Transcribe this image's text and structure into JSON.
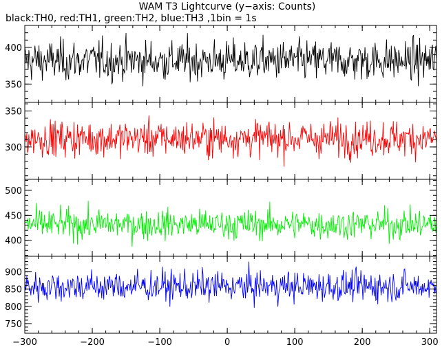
{
  "chart_data": {
    "type": "line",
    "title": "WAM T3 Lightcurve (y−axis: Counts)",
    "subtitle": "black:TH0, red:TH1, green:TH2, blue:TH3 ,1bin = 1s",
    "xlabel": "",
    "xlim": [
      -300,
      310
    ],
    "x_ticks": [
      -300,
      -200,
      -100,
      0,
      100,
      200,
      300
    ],
    "x_tick_labels": [
      "−300",
      "−200",
      "−100",
      "0",
      "100",
      "200",
      "300"
    ],
    "grid": false,
    "panels": [
      {
        "name": "TH0",
        "color": "#000000",
        "ylim": [
          325,
          430
        ],
        "y_ticks": [
          350,
          400
        ],
        "y_tick_labels": [
          "350",
          "400"
        ],
        "mean": 382,
        "noise": 22
      },
      {
        "name": "TH1",
        "color": "#ff0000",
        "ylim": [
          255,
          362
        ],
        "y_ticks": [
          300,
          350
        ],
        "y_tick_labels": [
          "300",
          "350"
        ],
        "mean": 312,
        "noise": 20
      },
      {
        "name": "TH2",
        "color": "#00ee00",
        "ylim": [
          368,
          522
        ],
        "y_ticks": [
          400,
          450,
          500
        ],
        "y_tick_labels": [
          "400",
          "450",
          "500"
        ],
        "mean": 432,
        "noise": 24
      },
      {
        "name": "TH3",
        "color": "#0000ff",
        "ylim": [
          722,
          945
        ],
        "y_ticks": [
          750,
          800,
          850,
          900
        ],
        "y_tick_labels": [
          "750",
          "800",
          "850",
          "900"
        ],
        "mean": 858,
        "noise": 36
      }
    ]
  }
}
